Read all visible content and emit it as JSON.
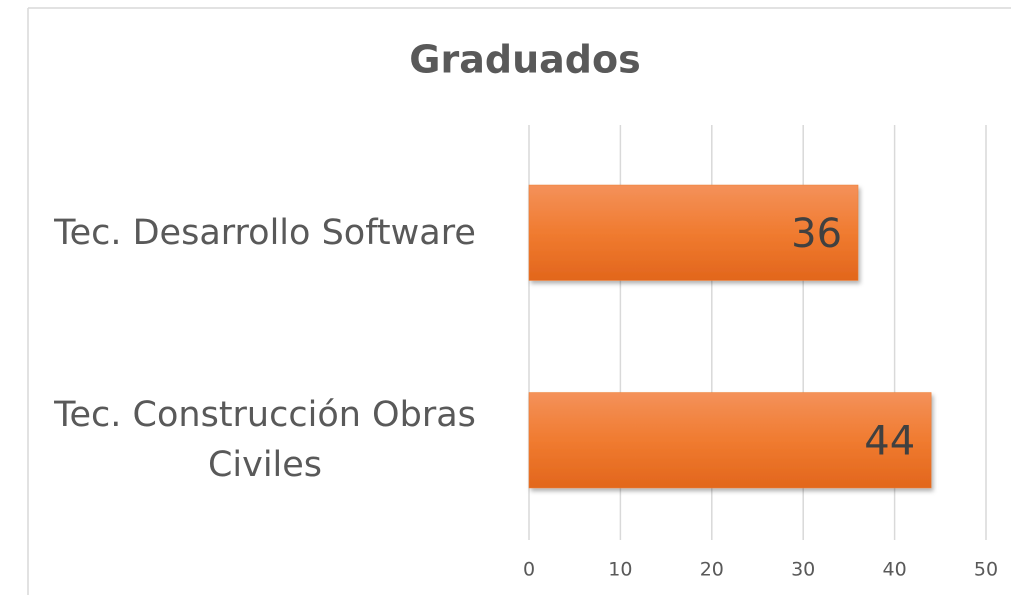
{
  "chart_data": {
    "type": "barh",
    "title": "Graduados",
    "categories": [
      "Tec. Desarrollo Software",
      "Tec. Construcción Obras Civiles"
    ],
    "values": [
      36,
      44
    ],
    "color": "#ed7d31",
    "xlim": [
      0,
      50
    ],
    "xticks": [
      0,
      10,
      20,
      30,
      40,
      50
    ],
    "grid": true
  }
}
